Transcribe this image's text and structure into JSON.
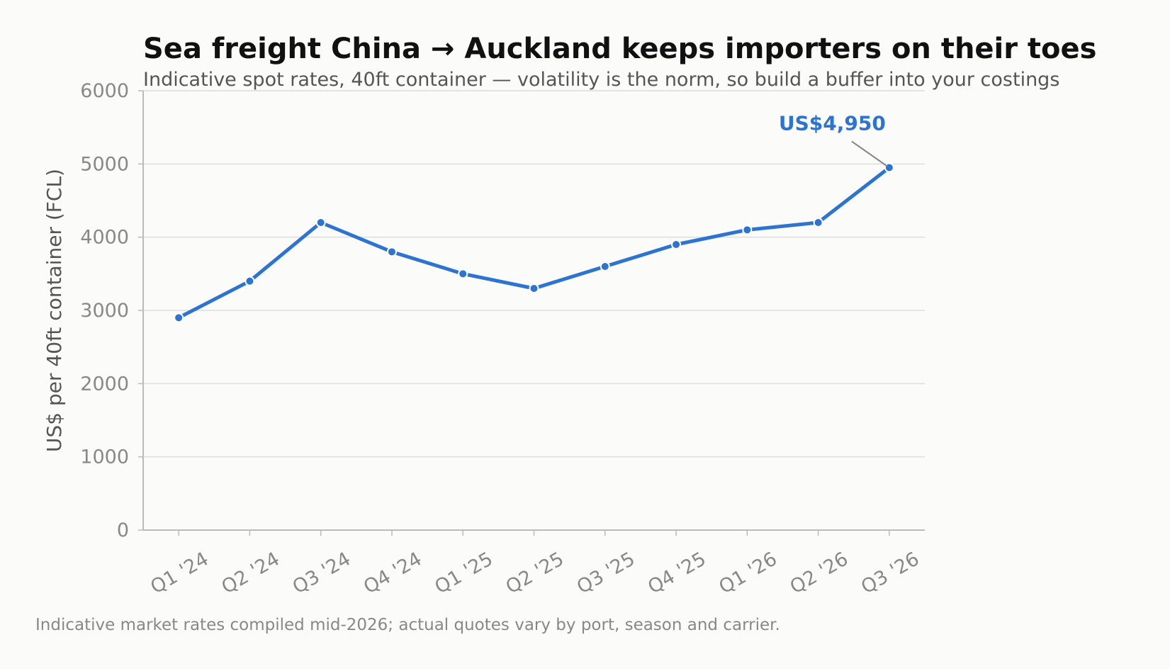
{
  "chart_data": {
    "type": "line",
    "title": "Sea freight China → Auckland keeps importers on their toes",
    "subtitle": "Indicative spot rates, 40ft container — volatility is the norm, so build a buffer into your costings",
    "xlabel": "",
    "ylabel": "US$ per 40ft container (FCL)",
    "categories": [
      "Q1 '24",
      "Q2 '24",
      "Q3 '24",
      "Q4 '24",
      "Q1 '25",
      "Q2 '25",
      "Q3 '25",
      "Q4 '25",
      "Q1 '26",
      "Q2 '26",
      "Q3 '26"
    ],
    "values": [
      2900,
      3400,
      4200,
      3800,
      3500,
      3300,
      3600,
      3900,
      4100,
      4200,
      4950
    ],
    "ylim": [
      0,
      6000
    ],
    "yticks": [
      0,
      1000,
      2000,
      3000,
      4000,
      5000,
      6000
    ],
    "grid": "horizontal",
    "annotation": {
      "text": "US$4,950",
      "category": "Q3 '26",
      "value": 4950
    },
    "footnote": "Indicative market rates compiled mid-2026; actual quotes vary by port, season and carrier.",
    "colors": {
      "line": "#2d74d1",
      "grid": "#dddddd",
      "axis": "#bbbbbb",
      "annotation": "#2d74d1"
    }
  }
}
